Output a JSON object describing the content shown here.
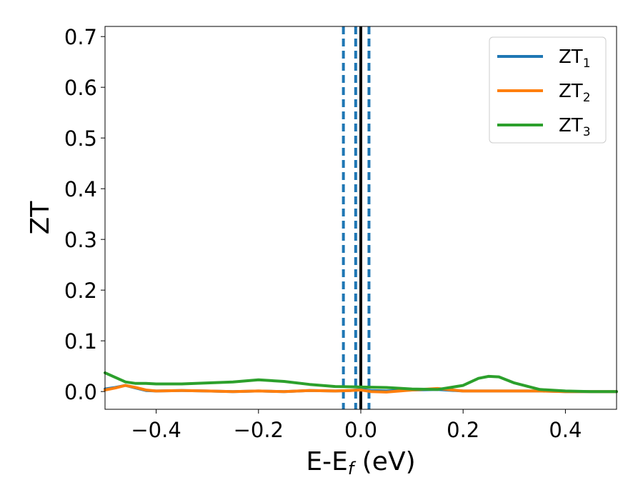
{
  "chart_data": {
    "type": "line",
    "xlabel_main": "E-E",
    "xlabel_sub": "f",
    "xlabel_unit": " (eV)",
    "ylabel": "ZT",
    "xlim": [
      -0.5,
      0.5
    ],
    "ylim": [
      -0.035,
      0.72
    ],
    "x_ticks": [
      -0.4,
      -0.2,
      0.0,
      0.2,
      0.4
    ],
    "x_tick_labels": [
      "−0.4",
      "−0.2",
      "0.0",
      "0.2",
      "0.4"
    ],
    "y_ticks": [
      0.0,
      0.1,
      0.2,
      0.3,
      0.4,
      0.5,
      0.6,
      0.7
    ],
    "y_tick_labels": [
      "0.0",
      "0.1",
      "0.2",
      "0.3",
      "0.4",
      "0.5",
      "0.6",
      "0.7"
    ],
    "legend_position": "top-right",
    "series": [
      {
        "name": "ZT",
        "subscript": "1",
        "color": "#1f77b4",
        "x": [
          -0.5,
          -0.48,
          -0.46,
          -0.44,
          -0.42,
          -0.4,
          -0.35,
          -0.3,
          -0.25,
          -0.2,
          -0.15,
          -0.1,
          -0.05,
          -0.02,
          0.0,
          0.02,
          0.05,
          0.1,
          0.15,
          0.2,
          0.25,
          0.3,
          0.35,
          0.4,
          0.45,
          0.5
        ],
        "y": [
          0.005,
          0.008,
          0.012,
          0.007,
          0.002,
          0.001,
          0.002,
          0.001,
          0.0,
          0.001,
          0.0,
          0.002,
          0.001,
          0.002,
          0.004,
          0.002,
          0.001,
          0.003,
          0.004,
          0.001,
          0.001,
          0.001,
          0.001,
          0.0,
          0.0,
          0.0
        ]
      },
      {
        "name": "ZT",
        "subscript": "2",
        "color": "#ff7f0e",
        "x": [
          -0.5,
          -0.48,
          -0.46,
          -0.44,
          -0.42,
          -0.4,
          -0.35,
          -0.3,
          -0.25,
          -0.2,
          -0.15,
          -0.1,
          -0.05,
          -0.02,
          0.0,
          0.02,
          0.05,
          0.1,
          0.15,
          0.2,
          0.25,
          0.3,
          0.35,
          0.4,
          0.45,
          0.5
        ],
        "y": [
          0.003,
          0.007,
          0.012,
          0.008,
          0.003,
          0.001,
          0.002,
          0.001,
          0.0,
          0.001,
          0.0,
          0.002,
          0.001,
          0.002,
          0.003,
          0.0,
          -0.001,
          0.003,
          0.006,
          0.001,
          0.001,
          0.001,
          0.001,
          0.0,
          0.0,
          0.0
        ]
      },
      {
        "name": "ZT",
        "subscript": "3",
        "color": "#2ca02c",
        "x": [
          -0.5,
          -0.48,
          -0.46,
          -0.44,
          -0.42,
          -0.4,
          -0.35,
          -0.3,
          -0.25,
          -0.2,
          -0.15,
          -0.1,
          -0.05,
          0.0,
          0.05,
          0.1,
          0.15,
          0.2,
          0.23,
          0.25,
          0.27,
          0.3,
          0.35,
          0.4,
          0.45,
          0.5
        ],
        "y": [
          0.037,
          0.028,
          0.019,
          0.016,
          0.016,
          0.015,
          0.015,
          0.017,
          0.019,
          0.023,
          0.02,
          0.014,
          0.01,
          0.009,
          0.008,
          0.005,
          0.004,
          0.012,
          0.026,
          0.03,
          0.029,
          0.017,
          0.004,
          0.001,
          0.0,
          0.0
        ]
      }
    ],
    "vlines": [
      {
        "x": 0.0,
        "color": "#000000",
        "style": "solid"
      },
      {
        "x": -0.034,
        "color": "#1f77b4",
        "style": "dashed"
      },
      {
        "x": -0.01,
        "color": "#1f77b4",
        "style": "dashed"
      },
      {
        "x": 0.016,
        "color": "#1f77b4",
        "style": "dashed"
      }
    ]
  }
}
